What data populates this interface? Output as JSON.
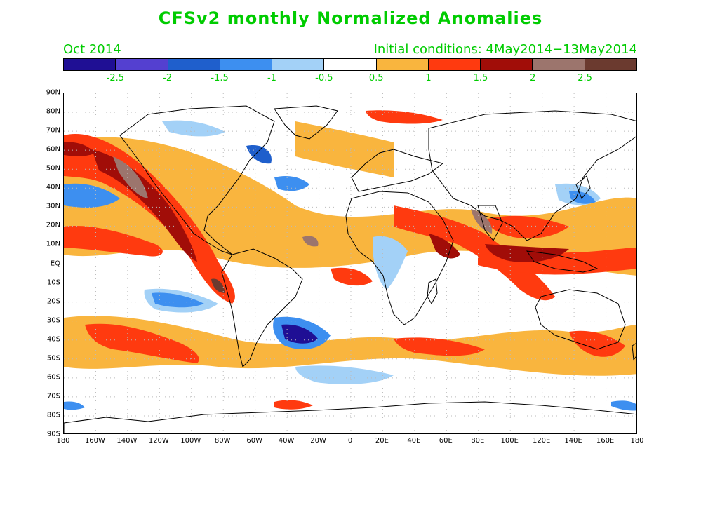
{
  "header": {
    "title": "CFSv2 monthly Normalized Anomalies",
    "period": "Oct 2014",
    "initial_conditions": "Initial conditions: 4May2014−13May2014"
  },
  "colorbar": {
    "colors": [
      "#1f0f94",
      "#5440d0",
      "#1f5fcc",
      "#3d8ff0",
      "#a3d1f7",
      "#ffffff",
      "#f9b53e",
      "#ff3a0f",
      "#a10d08",
      "#9c756d",
      "#6b3a2f"
    ],
    "labels": [
      "-2.5",
      "-2",
      "-1.5",
      "-1",
      "-0.5",
      "0.5",
      "1",
      "1.5",
      "2",
      "2.5"
    ]
  },
  "axes": {
    "lat_labels": [
      "90N",
      "80N",
      "70N",
      "60N",
      "50N",
      "40N",
      "30N",
      "20N",
      "10N",
      "EQ",
      "10S",
      "20S",
      "30S",
      "40S",
      "50S",
      "60S",
      "70S",
      "80S",
      "90S"
    ],
    "lon_labels": [
      "180",
      "160W",
      "140W",
      "120W",
      "100W",
      "80W",
      "60W",
      "40W",
      "20W",
      "0",
      "20E",
      "40E",
      "60E",
      "80E",
      "100E",
      "120E",
      "140E",
      "160E",
      "180"
    ]
  }
}
